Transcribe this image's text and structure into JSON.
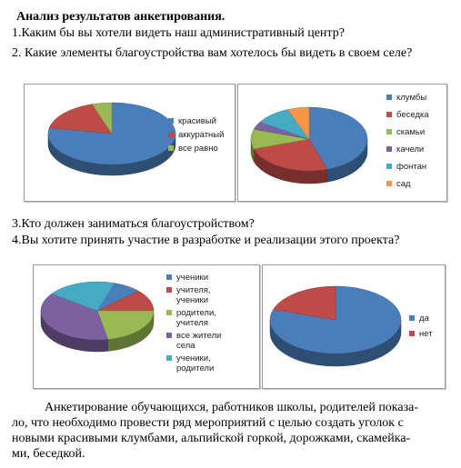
{
  "title": "Анализ результатов анкетирования.",
  "questions": {
    "q1": "1.Каким бы вы хотели видеть наш административный центр?",
    "q2": "2.  Какие элементы благоустройства вам  хотелось бы видеть в своем  селе?",
    "q3": "3.Кто должен заниматься благоустройством?",
    "q4": "4.Вы хотите принять участие в разработке и реализации этого проекта?"
  },
  "conclusion": {
    "lines": [
      "Анкетирование обучающихся, работников школы, родителей показа-",
      "ло, что необходимо провести ряд мероприятий с целью создать уголок с",
      "новыми красивыми клумбами, альпийской горкой, дорожками, скамейка-",
      "ми, беседкой."
    ]
  },
  "chart_data": [
    {
      "type": "pie",
      "legend_position": "right",
      "categories": [
        "красивый",
        "аккуратный",
        "все равно"
      ],
      "values": [
        78,
        17,
        5
      ],
      "colors": [
        "#4a7ebb",
        "#be4b48",
        "#98b954"
      ]
    },
    {
      "type": "pie",
      "legend_position": "right",
      "categories": [
        "клумбы",
        "беседка",
        "скамьи",
        "качели",
        "фонтан",
        "сад"
      ],
      "values": [
        45,
        25,
        10,
        4,
        10,
        6
      ],
      "colors": [
        "#4a7ebb",
        "#be4b48",
        "#98b954",
        "#7d60a0",
        "#46aac5",
        "#f79646"
      ]
    },
    {
      "type": "pie",
      "legend_position": "right",
      "categories": [
        "ученики",
        "учителя, ученики",
        "родители, учителя",
        "все жители села",
        "ученики, родители"
      ],
      "legend_labels": [
        [
          "ученики"
        ],
        [
          "учителя,",
          "ученики"
        ],
        [
          "родители,",
          "учителя"
        ],
        [
          "все жители",
          "села"
        ],
        [
          "ученики,",
          "родители"
        ]
      ],
      "values": [
        8,
        12,
        22,
        38,
        20
      ],
      "colors": [
        "#4a7ebb",
        "#be4b48",
        "#98b954",
        "#7d60a0",
        "#46aac5"
      ]
    },
    {
      "type": "pie",
      "legend_position": "right",
      "categories": [
        "да",
        "нет"
      ],
      "values": [
        80,
        20
      ],
      "colors": [
        "#4a7ebb",
        "#be4b48"
      ]
    }
  ]
}
